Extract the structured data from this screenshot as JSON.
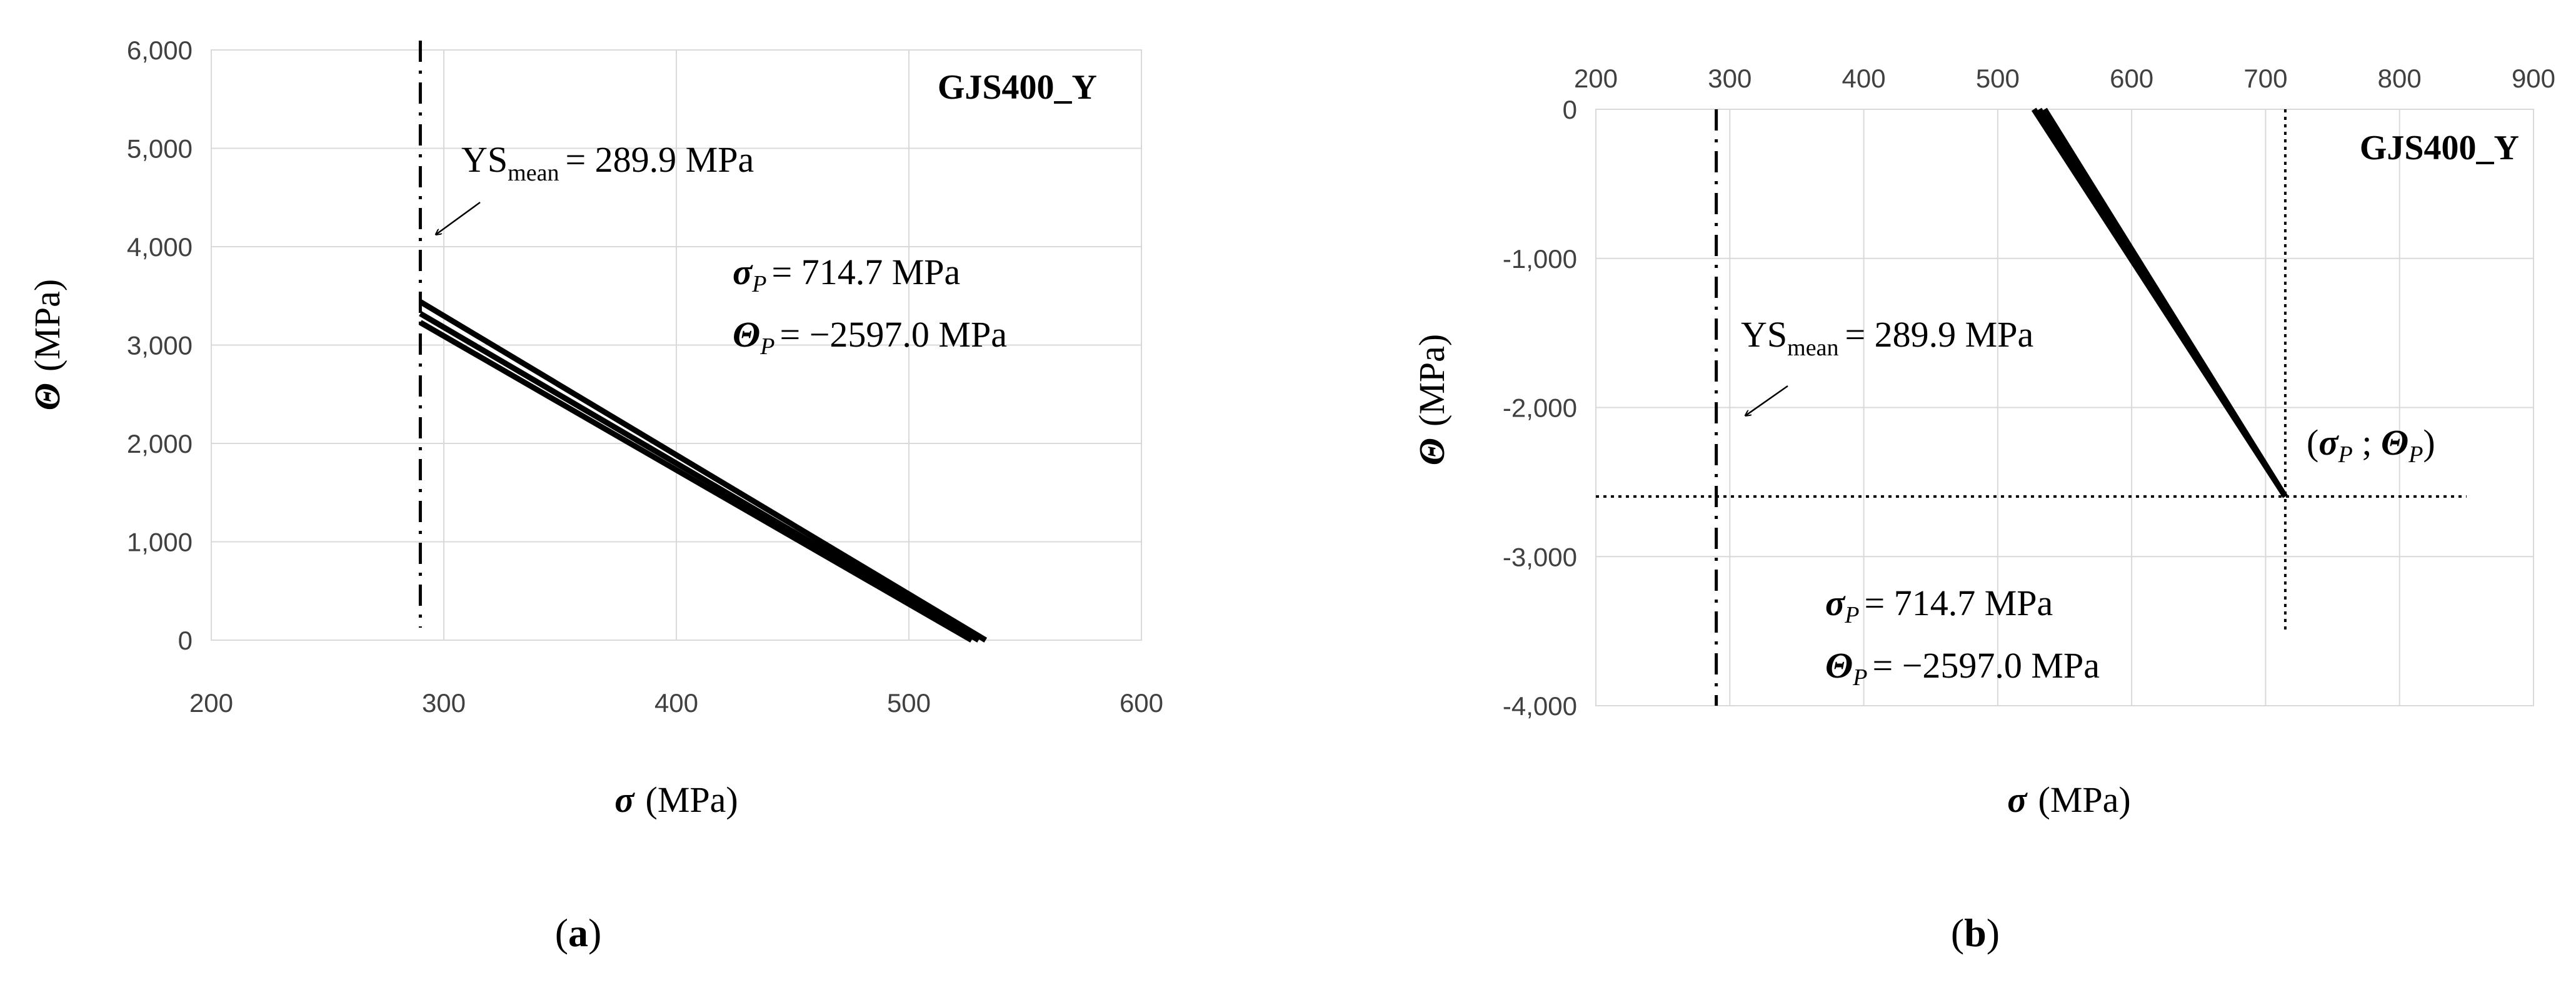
{
  "figure": {
    "panel_labels": [
      "a",
      "b"
    ]
  },
  "chart_data": [
    {
      "panel": "a",
      "type": "line",
      "title": "GJS400_Y",
      "xlabel_symbol": "σ",
      "xlabel_unit": "(MPa)",
      "ylabel_symbol": "Θ",
      "ylabel_unit": "(MPa)",
      "xlim": [
        200,
        600
      ],
      "ylim": [
        0,
        6000
      ],
      "x_ticks": [
        200,
        300,
        400,
        500,
        600
      ],
      "y_ticks": [
        0,
        1000,
        2000,
        3000,
        4000,
        5000,
        6000
      ],
      "x_tick_labels": [
        "200",
        "300",
        "400",
        "500",
        "600"
      ],
      "y_tick_labels": [
        "0",
        "1,000",
        "2,000",
        "3,000",
        "4,000",
        "5,000",
        "6,000"
      ],
      "x_axis_position": "bottom",
      "series": [
        {
          "x": [
            289.9,
            533
          ],
          "y": [
            3440,
            0
          ]
        },
        {
          "x": [
            289.9,
            530
          ],
          "y": [
            3320,
            0
          ]
        },
        {
          "x": [
            289.9,
            527
          ],
          "y": [
            3230,
            0
          ]
        }
      ],
      "reference_lines": [
        {
          "orientation": "vertical",
          "x": 289.9,
          "style": "dash-dot"
        }
      ],
      "annotations": {
        "ys_label": "YS",
        "ys_subscript": "mean",
        "ys_value": "= 289.9 MPa",
        "sigma_p_symbol": "σ",
        "sigma_p_sub": "P",
        "sigma_p_value": "= 714.7 MPa",
        "theta_p_symbol": "Θ",
        "theta_p_sub": "P",
        "theta_p_value": "= −2597.0 MPa"
      }
    },
    {
      "panel": "b",
      "type": "line",
      "title": "GJS400_Y",
      "xlabel_symbol": "σ",
      "xlabel_unit": "(MPa)",
      "ylabel_symbol": "Θ",
      "ylabel_unit": "(MPa)",
      "xlim": [
        200,
        900
      ],
      "ylim": [
        -4000,
        0
      ],
      "x_ticks": [
        200,
        300,
        400,
        500,
        600,
        700,
        800,
        900
      ],
      "y_ticks": [
        0,
        -1000,
        -2000,
        -3000,
        -4000
      ],
      "x_tick_labels": [
        "200",
        "300",
        "400",
        "500",
        "600",
        "700",
        "800",
        "900"
      ],
      "y_tick_labels": [
        "0",
        "-1,000",
        "-2,000",
        "-3,000",
        "-4,000"
      ],
      "x_axis_position": "top",
      "series": [
        {
          "x": [
            527,
            714.7
          ],
          "y": [
            0,
            -2597
          ]
        },
        {
          "x": [
            531,
            714.7
          ],
          "y": [
            0,
            -2597
          ]
        },
        {
          "x": [
            535,
            714.7
          ],
          "y": [
            0,
            -2597
          ]
        }
      ],
      "reference_lines": [
        {
          "orientation": "vertical",
          "x": 289.9,
          "style": "dash-dot"
        },
        {
          "orientation": "vertical",
          "x": 714.7,
          "y_range": [
            -3500,
            0
          ],
          "style": "dotted"
        },
        {
          "orientation": "horizontal",
          "y": -2597,
          "x_range": [
            200,
            850
          ],
          "style": "dotted"
        }
      ],
      "annotations": {
        "ys_label": "YS",
        "ys_subscript": "mean",
        "ys_value": "= 289.9 MPa",
        "point_label_open": "(",
        "point_label_sep": " ; ",
        "point_label_close": ")",
        "sigma_p_symbol": "σ",
        "sigma_p_sub": "P",
        "sigma_p_value": "= 714.7 MPa",
        "theta_p_symbol": "Θ",
        "theta_p_sub": "P",
        "theta_p_value": "= −2597.0 MPa"
      }
    }
  ]
}
